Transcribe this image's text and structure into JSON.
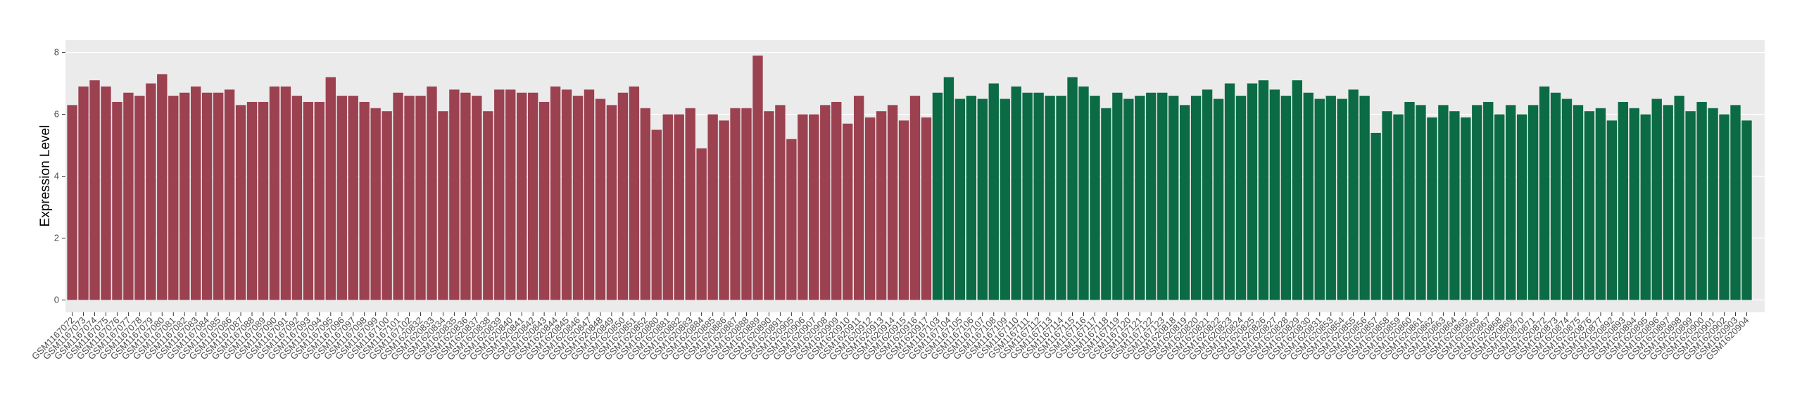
{
  "chart_data": {
    "type": "bar",
    "y_label": "Expression Level",
    "ylim": [
      -0.4,
      8.4
    ],
    "yticks": [
      0,
      2,
      4,
      6,
      8
    ],
    "grid": true,
    "series": [
      {
        "color": "#9b4150",
        "categories": [
          "GSM1167072",
          "GSM1167073",
          "GSM1167074",
          "GSM1167075",
          "GSM1167076",
          "GSM1167077",
          "GSM1167078",
          "GSM1167079",
          "GSM1167080",
          "GSM1167081",
          "GSM1167082",
          "GSM1167083",
          "GSM1167084",
          "GSM1167085",
          "GSM1167086",
          "GSM1167087",
          "GSM1167088",
          "GSM1167089",
          "GSM1167090",
          "GSM1167091",
          "GSM1167092",
          "GSM1167093",
          "GSM1167094",
          "GSM1167095",
          "GSM1167096",
          "GSM1167097",
          "GSM1167098",
          "GSM1167099",
          "GSM1167100",
          "GSM1167101",
          "GSM1167102",
          "GSM1620832",
          "GSM1620833",
          "GSM1620834",
          "GSM1620835",
          "GSM1620836",
          "GSM1620837",
          "GSM1620838",
          "GSM1620839",
          "GSM1620840",
          "GSM1620841",
          "GSM1620842",
          "GSM1620843",
          "GSM1620844",
          "GSM1620845",
          "GSM1620846",
          "GSM1620847",
          "GSM1620848",
          "GSM1620849",
          "GSM1620850",
          "GSM1620851",
          "GSM1620852",
          "GSM1620880",
          "GSM1620881",
          "GSM1620882",
          "GSM1620883",
          "GSM1620884",
          "GSM1620885",
          "GSM1620886",
          "GSM1620887",
          "GSM1620888",
          "GSM1620889",
          "GSM1620890",
          "GSM1620891",
          "GSM1620905",
          "GSM1620906",
          "GSM1620907",
          "GSM1620908",
          "GSM1620909",
          "GSM1620910",
          "GSM1620911",
          "GSM1620912",
          "GSM1620913",
          "GSM1620914",
          "GSM1620915",
          "GSM1620916",
          "GSM1620917"
        ],
        "values": [
          6.3,
          6.9,
          7.1,
          6.9,
          6.4,
          6.7,
          6.6,
          7.0,
          7.3,
          6.6,
          6.7,
          6.9,
          6.7,
          6.7,
          6.8,
          6.3,
          6.4,
          6.4,
          6.9,
          6.9,
          6.6,
          6.4,
          6.4,
          7.2,
          6.6,
          6.6,
          6.4,
          6.2,
          6.1,
          6.7,
          6.6,
          6.6,
          6.9,
          6.1,
          6.8,
          6.7,
          6.6,
          6.1,
          6.8,
          6.8,
          6.7,
          6.7,
          6.4,
          6.9,
          6.8,
          6.6,
          6.8,
          6.5,
          6.3,
          6.7,
          6.9,
          6.2,
          5.5,
          6.0,
          6.0,
          6.2,
          4.9,
          6.0,
          5.8,
          6.2,
          6.2,
          7.9,
          6.1,
          6.3,
          5.2,
          6.0,
          6.0,
          6.3,
          6.4,
          5.7,
          6.6,
          5.9,
          6.1,
          6.3,
          5.8,
          6.6,
          5.9
        ]
      },
      {
        "color": "#0b6b45",
        "categories": [
          "GSM1167103",
          "GSM1167104",
          "GSM1167105",
          "GSM1167106",
          "GSM1167107",
          "GSM1167108",
          "GSM1167109",
          "GSM1167110",
          "GSM1167111",
          "GSM1167112",
          "GSM1167113",
          "GSM1167114",
          "GSM1167115",
          "GSM1167116",
          "GSM1167117",
          "GSM1167118",
          "GSM1167119",
          "GSM1167120",
          "GSM1167121",
          "GSM1167122",
          "GSM1167123",
          "GSM1620818",
          "GSM1620819",
          "GSM1620820",
          "GSM1620821",
          "GSM1620822",
          "GSM1620823",
          "GSM1620824",
          "GSM1620825",
          "GSM1620826",
          "GSM1620827",
          "GSM1620828",
          "GSM1620829",
          "GSM1620830",
          "GSM1620831",
          "GSM1620853",
          "GSM1620854",
          "GSM1620855",
          "GSM1620856",
          "GSM1620857",
          "GSM1620858",
          "GSM1620859",
          "GSM1620860",
          "GSM1620861",
          "GSM1620862",
          "GSM1620863",
          "GSM1620864",
          "GSM1620865",
          "GSM1620866",
          "GSM1620867",
          "GSM1620868",
          "GSM1620869",
          "GSM1620870",
          "GSM1620871",
          "GSM1620872",
          "GSM1620873",
          "GSM1620874",
          "GSM1620875",
          "GSM1620876",
          "GSM1620877",
          "GSM1620892",
          "GSM1620893",
          "GSM1620894",
          "GSM1620895",
          "GSM1620896",
          "GSM1620897",
          "GSM1620898",
          "GSM1620899",
          "GSM1620900",
          "GSM1620901",
          "GSM1620902",
          "GSM1620903",
          "GSM1620904"
        ],
        "values": [
          6.7,
          7.2,
          6.5,
          6.6,
          6.5,
          7.0,
          6.5,
          6.9,
          6.7,
          6.7,
          6.6,
          6.6,
          7.2,
          6.9,
          6.6,
          6.2,
          6.7,
          6.5,
          6.6,
          6.7,
          6.7,
          6.6,
          6.3,
          6.6,
          6.8,
          6.5,
          7.0,
          6.6,
          7.0,
          7.1,
          6.8,
          6.6,
          7.1,
          6.7,
          6.5,
          6.6,
          6.5,
          6.8,
          6.6,
          5.4,
          6.1,
          6.0,
          6.4,
          6.3,
          5.9,
          6.3,
          6.1,
          5.9,
          6.3,
          6.4,
          6.0,
          6.3,
          6.0,
          6.3,
          6.9,
          6.7,
          6.5,
          6.3,
          6.1,
          6.2,
          5.8,
          6.4,
          6.2,
          6.0,
          6.5,
          6.3,
          6.6,
          6.1,
          6.4,
          6.2,
          6.0,
          6.3,
          5.8
        ]
      }
    ]
  }
}
